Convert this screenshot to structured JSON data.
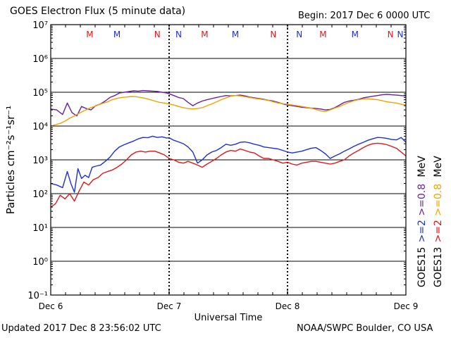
{
  "header": {
    "title": "GOES Electron Flux (5 minute data)",
    "begin": "Begin: 2017 Dec 6 0000 UTC"
  },
  "footer": {
    "updated": "Updated 2017 Dec  8 23:56:02 UTC",
    "credit": "NOAA/SWPC Boulder, CO USA"
  },
  "colors": {
    "goes15_2mev": "#1f2fd6",
    "goes13_2mev": "#e0161a",
    "goes15_08mev": "#6a1f9e",
    "goes13_08mev": "#f2a100",
    "marker_m": "#e0161a",
    "marker_n": "#1f2fd6",
    "marker_m_blue": "#1f2fd6",
    "marker_n_red": "#e0161a",
    "threshold_line": "#000000"
  },
  "chart_data": {
    "type": "line",
    "title": "GOES Electron Flux (5 minute data)",
    "xlabel": "Universal Time",
    "ylabel": "Particles cm⁻²s⁻¹sr⁻¹",
    "y_scale": "log",
    "ylim_exp": [
      -1,
      7
    ],
    "xlim_days": [
      0,
      3
    ],
    "grid": true,
    "threshold": 1000,
    "x_ticks": [
      {
        "day": 0,
        "label": "Dec 6"
      },
      {
        "day": 1,
        "label": "Dec 7"
      },
      {
        "day": 2,
        "label": "Dec 8"
      },
      {
        "day": 3,
        "label": "Dec 9"
      }
    ],
    "y_ticks": [
      {
        "exp": 7,
        "label": "10⁷"
      },
      {
        "exp": 6,
        "label": "10⁶"
      },
      {
        "exp": 5,
        "label": "10⁵"
      },
      {
        "exp": 4,
        "label": "10⁴"
      },
      {
        "exp": 3,
        "label": "10³"
      },
      {
        "exp": 2,
        "label": "10²"
      },
      {
        "exp": 1,
        "label": "10¹"
      },
      {
        "exp": 0,
        "label": "10⁰"
      },
      {
        "exp": -1,
        "label": "10⁻¹"
      }
    ],
    "markers": [
      {
        "day": 0.33,
        "label": "M",
        "color": "red"
      },
      {
        "day": 0.56,
        "label": "M",
        "color": "blue"
      },
      {
        "day": 0.9,
        "label": "N",
        "color": "red"
      },
      {
        "day": 1.08,
        "label": "N",
        "color": "blue"
      },
      {
        "day": 1.3,
        "label": "M",
        "color": "red"
      },
      {
        "day": 1.56,
        "label": "M",
        "color": "blue"
      },
      {
        "day": 1.88,
        "label": "N",
        "color": "red"
      },
      {
        "day": 2.1,
        "label": "N",
        "color": "blue"
      },
      {
        "day": 2.3,
        "label": "M",
        "color": "red"
      },
      {
        "day": 2.57,
        "label": "M",
        "color": "blue"
      },
      {
        "day": 2.87,
        "label": "N",
        "color": "red"
      },
      {
        "day": 3.08,
        "label": "N",
        "color": "blue"
      }
    ],
    "legend": [
      {
        "sat": "GOES15",
        "energy": ">=2",
        "series": "goes15_2mev",
        "unit": ""
      },
      {
        "sat": "GOES13",
        "energy": ">=2",
        "series": "goes13_2mev",
        "unit": ""
      },
      {
        "sat": "",
        "energy": ">=0.8",
        "series": "goes15_08mev",
        "unit": "MeV"
      },
      {
        "sat": "",
        "energy": ">=0.8",
        "series": "goes13_08mev",
        "unit": "MeV"
      }
    ],
    "series": [
      {
        "key": "goes15_2mev",
        "x": [
          0,
          0.05,
          0.1,
          0.14,
          0.17,
          0.2,
          0.23,
          0.26,
          0.29,
          0.32,
          0.35,
          0.38,
          0.42,
          0.46,
          0.5,
          0.54,
          0.58,
          0.62,
          0.66,
          0.7,
          0.74,
          0.78,
          0.82,
          0.86,
          0.9,
          0.94,
          0.98,
          1.0,
          1.04,
          1.08,
          1.12,
          1.16,
          1.2,
          1.24,
          1.28,
          1.32,
          1.36,
          1.4,
          1.44,
          1.48,
          1.52,
          1.56,
          1.6,
          1.64,
          1.68,
          1.72,
          1.76,
          1.8,
          1.84,
          1.88,
          1.92,
          1.96,
          2.0,
          2.04,
          2.08,
          2.12,
          2.16,
          2.2,
          2.24,
          2.28,
          2.32,
          2.36,
          2.4,
          2.44,
          2.48,
          2.52,
          2.56,
          2.6,
          2.64,
          2.68,
          2.72,
          2.76,
          2.8,
          2.84,
          2.88,
          2.92,
          2.96,
          3.0
        ],
        "y": [
          200,
          180,
          150,
          450,
          200,
          110,
          550,
          280,
          350,
          300,
          600,
          650,
          700,
          900,
          1200,
          1800,
          2400,
          2800,
          3200,
          3600,
          4200,
          4600,
          4500,
          5000,
          4600,
          4800,
          4400,
          4500,
          3800,
          3400,
          3000,
          2400,
          1700,
          800,
          1000,
          1400,
          1700,
          1900,
          2300,
          2900,
          2700,
          2900,
          3300,
          3400,
          3200,
          2900,
          2700,
          2400,
          2300,
          2200,
          2100,
          1900,
          1700,
          1600,
          1700,
          1800,
          2000,
          2200,
          2300,
          1900,
          1500,
          1100,
          1300,
          1500,
          1800,
          2100,
          2500,
          2900,
          3300,
          3800,
          4200,
          4600,
          4500,
          4300,
          4000,
          3900,
          4600,
          3300
        ]
      },
      {
        "key": "goes13_2mev",
        "x": [
          0,
          0.04,
          0.08,
          0.12,
          0.16,
          0.2,
          0.24,
          0.28,
          0.32,
          0.36,
          0.4,
          0.44,
          0.48,
          0.52,
          0.56,
          0.6,
          0.64,
          0.68,
          0.72,
          0.76,
          0.8,
          0.84,
          0.88,
          0.92,
          0.96,
          1.0,
          1.04,
          1.08,
          1.12,
          1.16,
          1.2,
          1.24,
          1.28,
          1.32,
          1.36,
          1.4,
          1.44,
          1.48,
          1.52,
          1.56,
          1.6,
          1.64,
          1.68,
          1.72,
          1.76,
          1.8,
          1.84,
          1.88,
          1.92,
          1.96,
          2.0,
          2.04,
          2.08,
          2.12,
          2.16,
          2.2,
          2.24,
          2.28,
          2.32,
          2.36,
          2.4,
          2.44,
          2.48,
          2.52,
          2.56,
          2.6,
          2.64,
          2.68,
          2.72,
          2.76,
          2.8,
          2.84,
          2.88,
          2.92,
          2.96,
          3.0
        ],
        "y": [
          40,
          50,
          90,
          70,
          100,
          60,
          120,
          220,
          180,
          260,
          300,
          400,
          450,
          500,
          600,
          750,
          1000,
          1400,
          1700,
          1800,
          1700,
          1800,
          1800,
          1600,
          1400,
          1100,
          1000,
          850,
          800,
          900,
          800,
          700,
          600,
          750,
          900,
          1100,
          1400,
          1700,
          1900,
          1800,
          2100,
          1900,
          1700,
          1600,
          1300,
          1100,
          1100,
          1000,
          900,
          800,
          850,
          750,
          700,
          800,
          850,
          900,
          900,
          850,
          800,
          750,
          800,
          900,
          1000,
          1300,
          1600,
          1900,
          2300,
          2700,
          3000,
          3100,
          3000,
          2800,
          2500,
          2200,
          1700,
          1300
        ]
      },
      {
        "key": "goes15_08mev",
        "x": [
          0,
          0.05,
          0.1,
          0.14,
          0.18,
          0.22,
          0.26,
          0.3,
          0.34,
          0.38,
          0.42,
          0.46,
          0.5,
          0.54,
          0.58,
          0.62,
          0.66,
          0.7,
          0.74,
          0.78,
          0.82,
          0.86,
          0.9,
          0.94,
          0.98,
          1.0,
          1.04,
          1.08,
          1.12,
          1.16,
          1.2,
          1.24,
          1.28,
          1.32,
          1.36,
          1.4,
          1.44,
          1.48,
          1.52,
          1.56,
          1.6,
          1.64,
          1.68,
          1.72,
          1.76,
          1.8,
          1.84,
          1.88,
          1.92,
          1.96,
          2.0,
          2.04,
          2.08,
          2.12,
          2.16,
          2.2,
          2.24,
          2.28,
          2.32,
          2.36,
          2.4,
          2.44,
          2.48,
          2.52,
          2.56,
          2.6,
          2.64,
          2.68,
          2.72,
          2.76,
          2.8,
          2.84,
          2.88,
          2.92,
          2.96,
          3.0
        ],
        "y": [
          32000,
          30000,
          22000,
          48000,
          25000,
          20000,
          38000,
          33000,
          30000,
          40000,
          45000,
          55000,
          70000,
          80000,
          95000,
          100000,
          105000,
          110000,
          108000,
          112000,
          110000,
          108000,
          106000,
          100000,
          95000,
          90000,
          80000,
          70000,
          65000,
          50000,
          40000,
          48000,
          55000,
          60000,
          65000,
          70000,
          75000,
          80000,
          78000,
          80000,
          82000,
          78000,
          72000,
          68000,
          65000,
          62000,
          58000,
          55000,
          50000,
          45000,
          42000,
          40000,
          38000,
          36000,
          35000,
          34000,
          33000,
          32000,
          30000,
          31000,
          35000,
          42000,
          50000,
          55000,
          58000,
          62000,
          68000,
          72000,
          76000,
          80000,
          84000,
          86000,
          84000,
          82000,
          80000,
          78000
        ]
      },
      {
        "key": "goes13_08mev",
        "x": [
          0,
          0.04,
          0.08,
          0.12,
          0.16,
          0.2,
          0.24,
          0.28,
          0.32,
          0.36,
          0.4,
          0.44,
          0.48,
          0.52,
          0.56,
          0.6,
          0.64,
          0.68,
          0.72,
          0.76,
          0.8,
          0.84,
          0.88,
          0.92,
          0.96,
          1.0,
          1.04,
          1.08,
          1.12,
          1.16,
          1.2,
          1.24,
          1.28,
          1.32,
          1.36,
          1.4,
          1.44,
          1.48,
          1.52,
          1.56,
          1.6,
          1.64,
          1.68,
          1.72,
          1.76,
          1.8,
          1.84,
          1.88,
          1.92,
          1.96,
          2.0,
          2.04,
          2.08,
          2.12,
          2.16,
          2.2,
          2.24,
          2.28,
          2.32,
          2.36,
          2.4,
          2.44,
          2.48,
          2.52,
          2.56,
          2.6,
          2.64,
          2.68,
          2.72,
          2.76,
          2.8,
          2.84,
          2.88,
          2.92,
          2.96,
          3.0
        ],
        "y": [
          10000,
          11000,
          12000,
          14000,
          17000,
          20000,
          24000,
          28000,
          33000,
          37000,
          42000,
          47000,
          52000,
          60000,
          66000,
          70000,
          72000,
          75000,
          74000,
          70000,
          66000,
          60000,
          55000,
          50000,
          48000,
          45000,
          42000,
          38000,
          35000,
          33000,
          32000,
          33000,
          35000,
          40000,
          45000,
          52000,
          60000,
          68000,
          76000,
          80000,
          78000,
          74000,
          70000,
          66000,
          63000,
          60000,
          57000,
          52000,
          48000,
          46000,
          44000,
          42000,
          40000,
          38000,
          36000,
          34000,
          31000,
          28000,
          27000,
          30000,
          34000,
          38000,
          44000,
          50000,
          56000,
          60000,
          63000,
          64000,
          62000,
          60000,
          56000,
          52000,
          50000,
          48000,
          44000,
          42000
        ]
      }
    ]
  }
}
